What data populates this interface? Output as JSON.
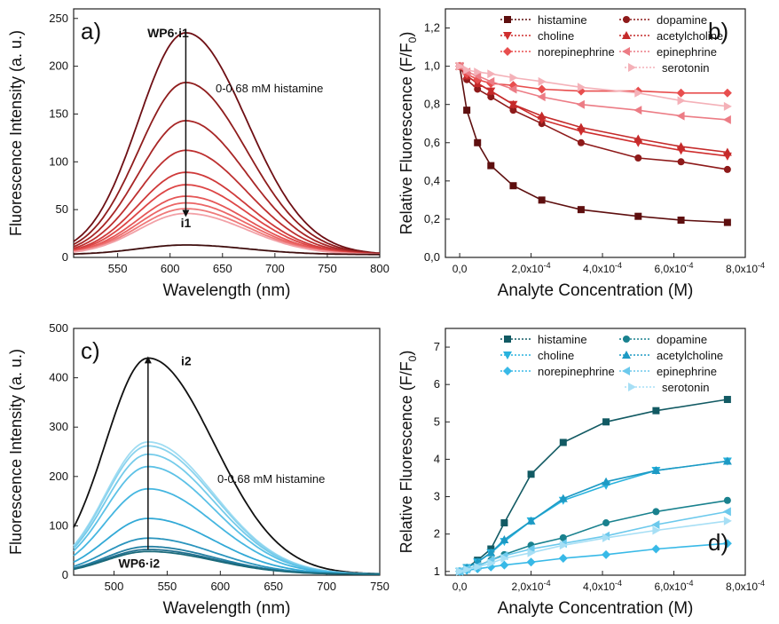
{
  "chart_data": [
    {
      "panel": "a)",
      "type": "line",
      "xlabel": "Wavelength (nm)",
      "ylabel": "Fluorescence Intensity (a. u.)",
      "xlim": [
        508,
        800
      ],
      "ylim": [
        0,
        260
      ],
      "xticks": [
        "550",
        "600",
        "650",
        "700",
        "750",
        "800"
      ],
      "yticks": [
        "0",
        "50",
        "100",
        "150",
        "200",
        "250"
      ],
      "peak_x": 615,
      "curve_widths": [
        45,
        58
      ],
      "baseline": 3,
      "series_peaks": [
        235,
        183,
        143,
        112,
        89,
        76,
        64,
        57,
        51,
        46,
        13
      ],
      "colors": [
        "#6e0f14",
        "#8f1d1d",
        "#a82626",
        "#bd3030",
        "#cf3a3a",
        "#dd4646",
        "#e55656",
        "#eb6666",
        "#ef7a7a",
        "#f2a1a7",
        "#3f0e0e"
      ],
      "annotations": {
        "top_label": "WP6·i1",
        "bottom_label": "i1",
        "range_label": "0-0.68 mM histamine"
      },
      "top_label_color": "#8b1a1a"
    },
    {
      "panel": "b)",
      "type": "line",
      "xlabel": "Analyte Concentration (M)",
      "ylabel": "Relative Fluorescence (F/F0)",
      "ylabel_main": "Relative Fluorescence (F/F",
      "ylabel_sub": "0",
      "ylabel_close": ")",
      "xlim": [
        -4e-05,
        0.0008
      ],
      "ylim": [
        0,
        1.3
      ],
      "xticks": [
        "0,0",
        "2,0x10-4",
        "4,0x10-4",
        "6,0x10-4",
        "8,0x10-4"
      ],
      "yticks": [
        "0,0",
        "0,2",
        "0,4",
        "0,6",
        "0,8",
        "1,0",
        "1,2"
      ],
      "x": [
        0,
        2e-05,
        5e-05,
        8.75e-05,
        0.00015,
        0.00023,
        0.00034,
        0.0005,
        0.00062,
        0.00075
      ],
      "series": [
        {
          "name": "histamine",
          "marker": "square",
          "color": "#5e0f0f",
          "values": [
            1.0,
            0.77,
            0.6,
            0.48,
            0.375,
            0.3,
            0.25,
            0.215,
            0.195,
            0.183
          ]
        },
        {
          "name": "dopamine",
          "marker": "circle",
          "color": "#8e1a1a",
          "values": [
            1.0,
            0.93,
            0.88,
            0.84,
            0.77,
            0.7,
            0.6,
            0.52,
            0.5,
            0.46
          ]
        },
        {
          "name": "choline",
          "marker": "triangle-down",
          "color": "#cf2e2e",
          "values": [
            1.0,
            0.95,
            0.91,
            0.87,
            0.8,
            0.72,
            0.66,
            0.6,
            0.56,
            0.53
          ]
        },
        {
          "name": "acetylcholine",
          "marker": "triangle-up",
          "color": "#c42a2a",
          "values": [
            1.0,
            0.95,
            0.91,
            0.87,
            0.8,
            0.74,
            0.68,
            0.62,
            0.58,
            0.55
          ]
        },
        {
          "name": "norepinephrine",
          "marker": "diamond",
          "color": "#e84e4e",
          "values": [
            1.0,
            0.96,
            0.93,
            0.91,
            0.9,
            0.88,
            0.87,
            0.87,
            0.86,
            0.86
          ]
        },
        {
          "name": "epinephrine",
          "marker": "triangle-left",
          "color": "#ec7c85",
          "values": [
            1.0,
            0.97,
            0.95,
            0.92,
            0.88,
            0.84,
            0.8,
            0.77,
            0.74,
            0.72
          ]
        },
        {
          "name": "serotonin",
          "marker": "triangle-right",
          "color": "#f4b1b8",
          "values": [
            1.0,
            0.98,
            0.97,
            0.96,
            0.94,
            0.92,
            0.89,
            0.86,
            0.82,
            0.79
          ]
        }
      ],
      "legend_position": "top"
    },
    {
      "panel": "c)",
      "type": "line",
      "xlabel": "Wavelength (nm)",
      "ylabel": "Fluorescence Intensity (a. u.)",
      "xlim": [
        462,
        750
      ],
      "ylim": [
        0,
        500
      ],
      "xticks": [
        "500",
        "550",
        "600",
        "650",
        "700",
        "750"
      ],
      "yticks": [
        "0",
        "100",
        "200",
        "300",
        "400",
        "500"
      ],
      "peak_x": 532,
      "curve_widths": [
        40,
        62
      ],
      "baseline": 2,
      "series_peaks": [
        440,
        270,
        262,
        245,
        220,
        175,
        115,
        75,
        58,
        52,
        48
      ],
      "colors": [
        "#111111",
        "#9fdcf2",
        "#8ad3ee",
        "#74cbea",
        "#5cc1e6",
        "#45b6e0",
        "#32a9d6",
        "#2a94bd",
        "#237fa2",
        "#1f6f8e",
        "#1b6a7a"
      ],
      "annotations": {
        "top_label": "i2",
        "bottom_label": "WP6·i2",
        "range_label": "0-0.68 mM histamine"
      },
      "bottom_label_color": "#1f6f80"
    },
    {
      "panel": "d)",
      "type": "line",
      "xlabel": "Analyte Concentration (M)",
      "ylabel": "Relative Fluorescence (F/F0)",
      "ylabel_main": "Relative Fluorescence (F/F",
      "ylabel_sub": "0",
      "ylabel_close": ")",
      "xlim": [
        -4e-05,
        0.0008
      ],
      "ylim": [
        0.9,
        7.5
      ],
      "xticks": [
        "0,0",
        "2,0x10-4",
        "4,0x10-4",
        "6,0x10-4",
        "8,0x10-4"
      ],
      "yticks": [
        "1",
        "2",
        "3",
        "4",
        "5",
        "6",
        "7"
      ],
      "x": [
        0,
        2e-05,
        5e-05,
        8.75e-05,
        0.000125,
        0.0002,
        0.00029,
        0.00041,
        0.00055,
        0.00075
      ],
      "series": [
        {
          "name": "histamine",
          "marker": "square",
          "color": "#125a63",
          "values": [
            1.0,
            1.1,
            1.3,
            1.6,
            2.3,
            3.6,
            4.45,
            5.0,
            5.3,
            5.6
          ]
        },
        {
          "name": "dopamine",
          "marker": "circle",
          "color": "#19818e",
          "values": [
            1.0,
            1.05,
            1.15,
            1.3,
            1.45,
            1.7,
            1.9,
            2.3,
            2.6,
            2.9
          ]
        },
        {
          "name": "choline",
          "marker": "triangle-down",
          "color": "#28b2dd",
          "values": [
            1.0,
            1.1,
            1.25,
            1.5,
            1.8,
            2.35,
            2.9,
            3.3,
            3.7,
            3.95
          ]
        },
        {
          "name": "acetylcholine",
          "marker": "triangle-up",
          "color": "#1d9ac4",
          "values": [
            1.0,
            1.1,
            1.25,
            1.5,
            1.85,
            2.35,
            2.95,
            3.4,
            3.7,
            3.95
          ]
        },
        {
          "name": "norepinephrine",
          "marker": "diamond",
          "color": "#38b9e7",
          "values": [
            1.0,
            1.03,
            1.07,
            1.12,
            1.17,
            1.25,
            1.35,
            1.45,
            1.6,
            1.75
          ]
        },
        {
          "name": "epinephrine",
          "marker": "triangle-left",
          "color": "#6cc9ec",
          "values": [
            1.0,
            1.06,
            1.14,
            1.3,
            1.42,
            1.6,
            1.75,
            1.95,
            2.25,
            2.6
          ]
        },
        {
          "name": "serotonin",
          "marker": "triangle-right",
          "color": "#a7dff5",
          "values": [
            1.0,
            1.05,
            1.12,
            1.22,
            1.35,
            1.5,
            1.7,
            1.9,
            2.1,
            2.35
          ]
        }
      ],
      "legend_position": "top"
    }
  ]
}
